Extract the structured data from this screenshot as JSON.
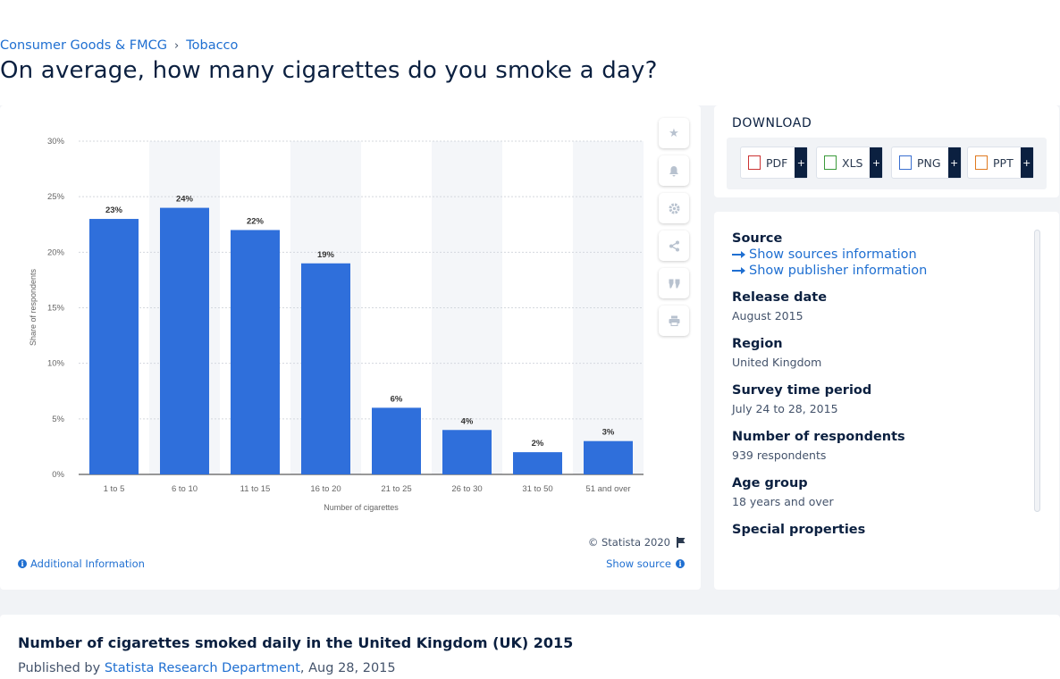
{
  "breadcrumb": {
    "items": [
      "Consumer Goods & FMCG",
      "Tobacco"
    ]
  },
  "page_title": "On average, how many cigarettes do you smoke a day?",
  "chart_data": {
    "type": "bar",
    "categories": [
      "1 to 5",
      "6 to 10",
      "11 to 15",
      "16 to 20",
      "21 to 25",
      "26 to 30",
      "31 to 50",
      "51 and over"
    ],
    "values": [
      23,
      24,
      22,
      19,
      6,
      4,
      2,
      3
    ],
    "data_labels": [
      "23%",
      "24%",
      "22%",
      "19%",
      "6%",
      "4%",
      "2%",
      "3%"
    ],
    "ylabel": "Share of respondents",
    "xlabel": "Number of cigarettes",
    "ylim": [
      0,
      30
    ],
    "yticks": [
      0,
      5,
      10,
      15,
      20,
      25,
      30
    ],
    "ytick_labels": [
      "0%",
      "5%",
      "10%",
      "15%",
      "20%",
      "25%",
      "30%"
    ],
    "bar_color": "#2f6fdb",
    "grid": true
  },
  "chart_footer": {
    "copyright": "© Statista 2020",
    "additional_info": "Additional Information",
    "show_source": "Show source"
  },
  "download": {
    "title": "DOWNLOAD",
    "buttons": [
      {
        "label": "PDF",
        "icon": "pdf-file-icon"
      },
      {
        "label": "XLS",
        "icon": "xls-file-icon"
      },
      {
        "label": "PNG",
        "icon": "png-file-icon"
      },
      {
        "label": "PPT",
        "icon": "ppt-file-icon"
      }
    ],
    "plus": "+"
  },
  "info": {
    "source_label": "Source",
    "show_sources": "Show sources information",
    "show_publisher": "Show publisher information",
    "release_label": "Release date",
    "release_value": "August 2015",
    "region_label": "Region",
    "region_value": "United Kingdom",
    "survey_label": "Survey time period",
    "survey_value": "July 24 to 28, 2015",
    "respondents_label": "Number of respondents",
    "respondents_value": "939 respondents",
    "age_label": "Age group",
    "age_value": "18 years and over",
    "special_label": "Special properties"
  },
  "footer": {
    "title": "Number of cigarettes smoked daily in the United Kingdom (UK) 2015",
    "published_prefix": "Published by",
    "publisher": "Statista Research Department",
    "date": ", Aug 28, 2015"
  }
}
